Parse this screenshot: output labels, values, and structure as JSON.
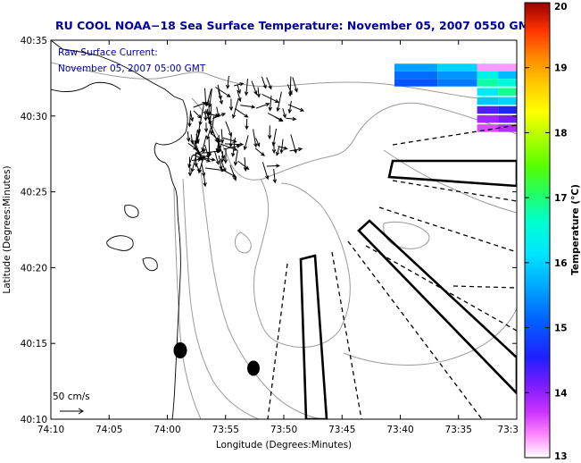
{
  "chart_data": {
    "type": "map",
    "title": "RU COOL  NOAA−18  Sea Surface Temperature:  November 05, 2007 0550 GMT",
    "annotation": [
      "Raw Surface Current:",
      "November 05, 2007 05:00 GMT"
    ],
    "xlabel": "Longitude (Degrees:Minutes)",
    "ylabel": "Latitude (Degrees:Minutes)",
    "x_ticks": [
      "74:10",
      "74:05",
      "74:00",
      "73:55",
      "73:50",
      "73:45",
      "73:40",
      "73:35",
      "73:3"
    ],
    "x_tick_minutes": [
      -610,
      -605,
      -600,
      -595,
      -590,
      -585,
      -580,
      -575,
      -570
    ],
    "y_ticks": [
      "40:35",
      "40:30",
      "40:25",
      "40:20",
      "40:15",
      "40:10"
    ],
    "y_tick_minutes": [
      2435,
      2430,
      2425,
      2420,
      2415,
      2410
    ],
    "xlim_minutes": [
      -610,
      -570
    ],
    "ylim_minutes": [
      2410,
      2435
    ],
    "scale_label": "50 cm/s",
    "colorbar": {
      "label": "Temperature (°C)",
      "range": [
        13,
        20
      ],
      "ticks": [
        "20",
        "19",
        "18",
        "17",
        "16",
        "15",
        "14",
        "13"
      ]
    },
    "sst_patch": {
      "rows_lat": [
        2433.2,
        2432.9,
        2432.6,
        2432.3,
        2432.0,
        2431.7,
        2431.4,
        2431.1,
        2430.8,
        2430.5,
        2430.2,
        2429.9,
        2429.6,
        2429.3,
        2429.0
      ],
      "cells": [
        {
          "lon0": -580.5,
          "lon1": -576.8,
          "lat": 2433.2,
          "t": 15.6
        },
        {
          "lon0": -576.8,
          "lon1": -573.4,
          "lat": 2433.2,
          "t": 16.0
        },
        {
          "lon0": -573.4,
          "lon1": -570.0,
          "lat": 2433.2,
          "t": 13.3
        },
        {
          "lon0": -580.5,
          "lon1": -576.8,
          "lat": 2432.7,
          "t": 15.2
        },
        {
          "lon0": -576.8,
          "lon1": -573.4,
          "lat": 2432.7,
          "t": 15.5
        },
        {
          "lon0": -573.4,
          "lon1": -571.6,
          "lat": 2432.7,
          "t": 16.4
        },
        {
          "lon0": -571.6,
          "lon1": -570.0,
          "lat": 2432.7,
          "t": 15.8
        },
        {
          "lon0": -580.5,
          "lon1": -576.8,
          "lat": 2432.2,
          "t": 15.0
        },
        {
          "lon0": -576.8,
          "lon1": -573.4,
          "lat": 2432.2,
          "t": 15.3
        },
        {
          "lon0": -573.4,
          "lon1": -571.6,
          "lat": 2432.2,
          "t": 16.8
        },
        {
          "lon0": -571.6,
          "lon1": -570.0,
          "lat": 2432.2,
          "t": 16.5
        },
        {
          "lon0": -573.4,
          "lon1": -571.6,
          "lat": 2431.6,
          "t": 16.2
        },
        {
          "lon0": -571.6,
          "lon1": -570.0,
          "lat": 2431.6,
          "t": 16.9
        },
        {
          "lon0": -573.4,
          "lon1": -571.6,
          "lat": 2431.0,
          "t": 15.9
        },
        {
          "lon0": -571.6,
          "lon1": -570.0,
          "lat": 2431.0,
          "t": 16.0
        },
        {
          "lon0": -573.4,
          "lon1": -571.6,
          "lat": 2430.4,
          "t": 14.3
        },
        {
          "lon0": -571.6,
          "lon1": -570.0,
          "lat": 2430.4,
          "t": 14.6
        },
        {
          "lon0": -573.4,
          "lon1": -571.6,
          "lat": 2429.8,
          "t": 13.9
        },
        {
          "lon0": -571.6,
          "lon1": -570.0,
          "lat": 2429.8,
          "t": 14.1
        },
        {
          "lon0": -573.4,
          "lon1": -571.6,
          "lat": 2429.2,
          "t": 13.6
        },
        {
          "lon0": -571.6,
          "lon1": -570.0,
          "lat": 2429.2,
          "t": 13.8
        }
      ]
    },
    "current_vectors_count": 120
  }
}
